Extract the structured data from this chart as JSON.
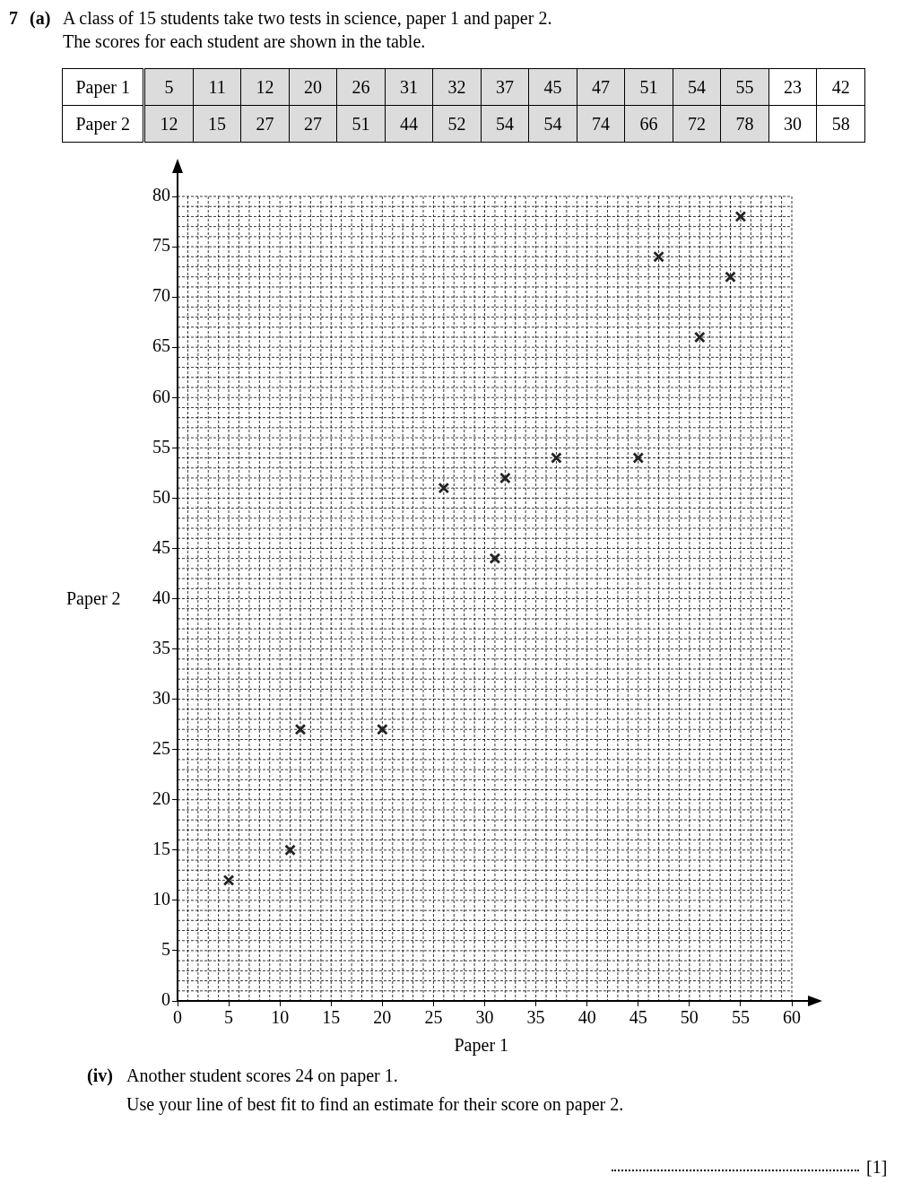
{
  "chart_data": {
    "type": "scatter",
    "xlabel": "Paper 1",
    "ylabel": "Paper 2",
    "x": [
      5,
      11,
      12,
      20,
      26,
      31,
      32,
      37,
      45,
      47,
      51,
      54,
      55
    ],
    "values": [
      12,
      15,
      27,
      27,
      51,
      44,
      52,
      54,
      54,
      74,
      66,
      72,
      78
    ],
    "color": "#222222",
    "marker": "cross",
    "grid": true,
    "legend": false,
    "xlim": [
      0,
      60
    ],
    "xticks": [
      0,
      5,
      10,
      15,
      20,
      25,
      30,
      35,
      40,
      45,
      50,
      55,
      60
    ],
    "ylim": [
      0,
      80
    ],
    "yticks": [
      0,
      5,
      10,
      15,
      20,
      25,
      30,
      35,
      40,
      45,
      50,
      55,
      60,
      65,
      70,
      75,
      80
    ],
    "annotations": [
      "7",
      "(a)",
      "A class of 15 students take two tests in science, paper 1 and paper 2.",
      "The scores for each student are shown in the table.",
      "Paper 1",
      "5",
      "11",
      "12",
      "20",
      "26",
      "31",
      "32",
      "37",
      "45",
      "47",
      "51",
      "54",
      "55",
      "23",
      "42",
      "Paper 2",
      "12",
      "15",
      "27",
      "27",
      "51",
      "44",
      "52",
      "54",
      "54",
      "74",
      "66",
      "72",
      "78",
      "30",
      "58",
      "(iv)",
      "Another student scores 24 on paper 1.",
      "Use your line of best fit to find an estimate for their score on paper 2.",
      "[1]"
    ]
  }
}
